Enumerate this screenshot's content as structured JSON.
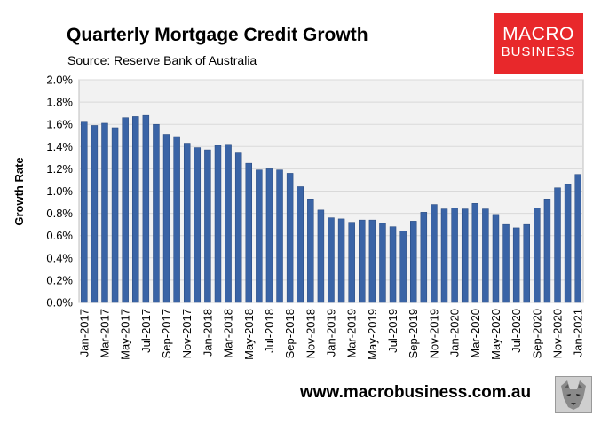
{
  "header": {
    "title": "Quarterly Mortgage Credit Growth",
    "source": "Source: Reserve Bank of Australia"
  },
  "logo": {
    "line1": "MACRO",
    "line2": "BUSINESS",
    "bg_color": "#e8282b"
  },
  "footer": {
    "url": "www.macrobusiness.com.au",
    "logo_icon": "wolf-icon"
  },
  "colors": {
    "bar": "#3a64a6",
    "bar_edge": "#24457a",
    "plot_bg": "#f2f2f2",
    "grid": "#d9d9d9"
  },
  "chart_data": {
    "type": "bar",
    "title": "Quarterly Mortgage Credit Growth",
    "ylabel": "Growth Rate",
    "xlabel": "",
    "ylim": [
      0,
      0.02
    ],
    "y_ticks": [
      "0.0%",
      "0.2%",
      "0.4%",
      "0.6%",
      "0.8%",
      "1.0%",
      "1.2%",
      "1.4%",
      "1.6%",
      "1.8%",
      "2.0%"
    ],
    "y_tick_values": [
      0,
      0.002,
      0.004,
      0.006,
      0.008,
      0.01,
      0.012,
      0.014,
      0.016,
      0.018,
      0.02
    ],
    "grid": "horizontal",
    "legend": "none",
    "categories": [
      "Jan-2017",
      "Feb-2017",
      "Mar-2017",
      "Apr-2017",
      "May-2017",
      "Jun-2017",
      "Jul-2017",
      "Aug-2017",
      "Sep-2017",
      "Oct-2017",
      "Nov-2017",
      "Dec-2017",
      "Jan-2018",
      "Feb-2018",
      "Mar-2018",
      "Apr-2018",
      "May-2018",
      "Jun-2018",
      "Jul-2018",
      "Aug-2018",
      "Sep-2018",
      "Oct-2018",
      "Nov-2018",
      "Dec-2018",
      "Jan-2019",
      "Feb-2019",
      "Mar-2019",
      "Apr-2019",
      "May-2019",
      "Jun-2019",
      "Jul-2019",
      "Aug-2019",
      "Sep-2019",
      "Oct-2019",
      "Nov-2019",
      "Dec-2019",
      "Jan-2020",
      "Feb-2020",
      "Mar-2020",
      "Apr-2020",
      "May-2020",
      "Jun-2020",
      "Jul-2020",
      "Aug-2020",
      "Sep-2020",
      "Oct-2020",
      "Nov-2020",
      "Dec-2020",
      "Jan-2021"
    ],
    "tick_labels": [
      "Jan-2017",
      "Mar-2017",
      "May-2017",
      "Jul-2017",
      "Sep-2017",
      "Nov-2017",
      "Jan-2018",
      "Mar-2018",
      "May-2018",
      "Jul-2018",
      "Sep-2018",
      "Nov-2018",
      "Jan-2019",
      "Mar-2019",
      "May-2019",
      "Jul-2019",
      "Sep-2019",
      "Nov-2019",
      "Jan-2020",
      "Mar-2020",
      "May-2020",
      "Jul-2020",
      "Sep-2020",
      "Nov-2020",
      "Jan-2021"
    ],
    "values": [
      0.0162,
      0.0159,
      0.0161,
      0.0157,
      0.0166,
      0.0167,
      0.0168,
      0.016,
      0.0151,
      0.0149,
      0.0143,
      0.0139,
      0.0137,
      0.0141,
      0.0142,
      0.0135,
      0.0125,
      0.0119,
      0.012,
      0.0119,
      0.0116,
      0.0104,
      0.0093,
      0.0083,
      0.0076,
      0.0075,
      0.0072,
      0.0074,
      0.0074,
      0.0071,
      0.0068,
      0.0064,
      0.0073,
      0.0081,
      0.0088,
      0.0084,
      0.0085,
      0.0084,
      0.0089,
      0.0084,
      0.0079,
      0.007,
      0.0067,
      0.007,
      0.0085,
      0.0093,
      0.0103,
      0.0106,
      0.0115
    ]
  }
}
